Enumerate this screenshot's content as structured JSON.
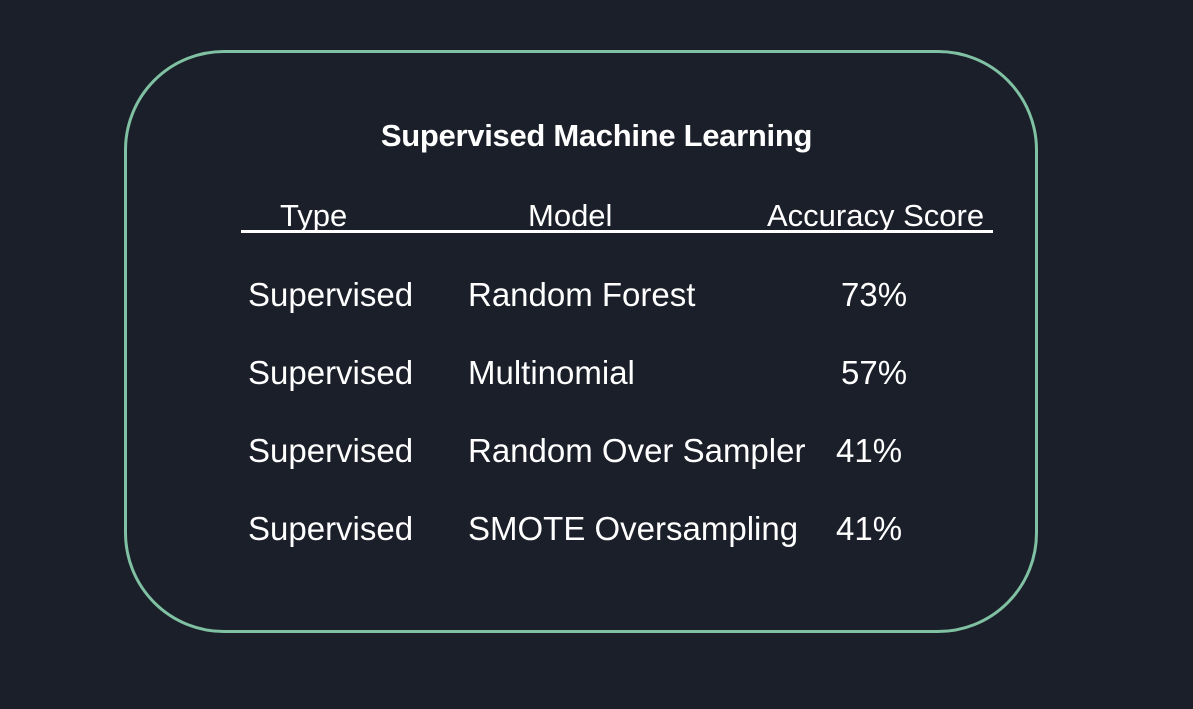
{
  "title": "Supervised Machine Learning",
  "colors": {
    "background": "#1b1f29",
    "border": "#7fc1a2",
    "text": "#ffffff"
  },
  "table": {
    "headers": {
      "type": "Type",
      "model": "Model",
      "score": "Accuracy Score"
    },
    "rows": [
      {
        "type": "Supervised",
        "model": "Random Forest",
        "score": "73%"
      },
      {
        "type": "Supervised",
        "model": "Multinomial",
        "score": "57%"
      },
      {
        "type": "Supervised",
        "model": "Random Over Sampler",
        "score": "41%"
      },
      {
        "type": "Supervised",
        "model": "SMOTE Oversampling",
        "score": "41%"
      }
    ]
  }
}
